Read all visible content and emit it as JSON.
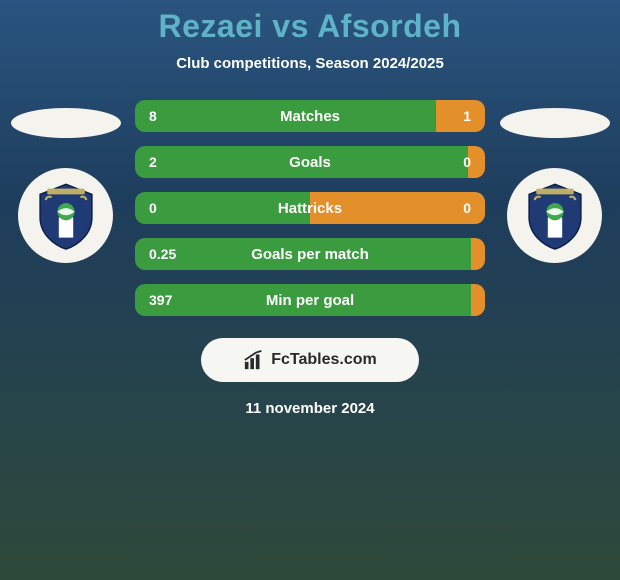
{
  "title": "Rezaei vs Afsordeh",
  "subtitle": "Club competitions, Season 2024/2025",
  "branding_text": "FcTables.com",
  "date_text": "11 november 2024",
  "colors": {
    "left_bar": "#3a9c3e",
    "right_bar": "#e38f2a",
    "title_color": "#5fb3c9",
    "badge_primary": "#1f3a74",
    "badge_accent": "#3fa84a"
  },
  "bars": [
    {
      "label": "Matches",
      "left_value": "8",
      "right_value": "1",
      "left_pct": 86,
      "right_pct": 14
    },
    {
      "label": "Goals",
      "left_value": "2",
      "right_value": "0",
      "left_pct": 95,
      "right_pct": 5
    },
    {
      "label": "Hattricks",
      "left_value": "0",
      "right_value": "0",
      "left_pct": 50,
      "right_pct": 50
    },
    {
      "label": "Goals per match",
      "left_value": "0.25",
      "right_value": "",
      "left_pct": 97,
      "right_pct": 3
    },
    {
      "label": "Min per goal",
      "left_value": "397",
      "right_value": "",
      "left_pct": 97,
      "right_pct": 3
    }
  ]
}
